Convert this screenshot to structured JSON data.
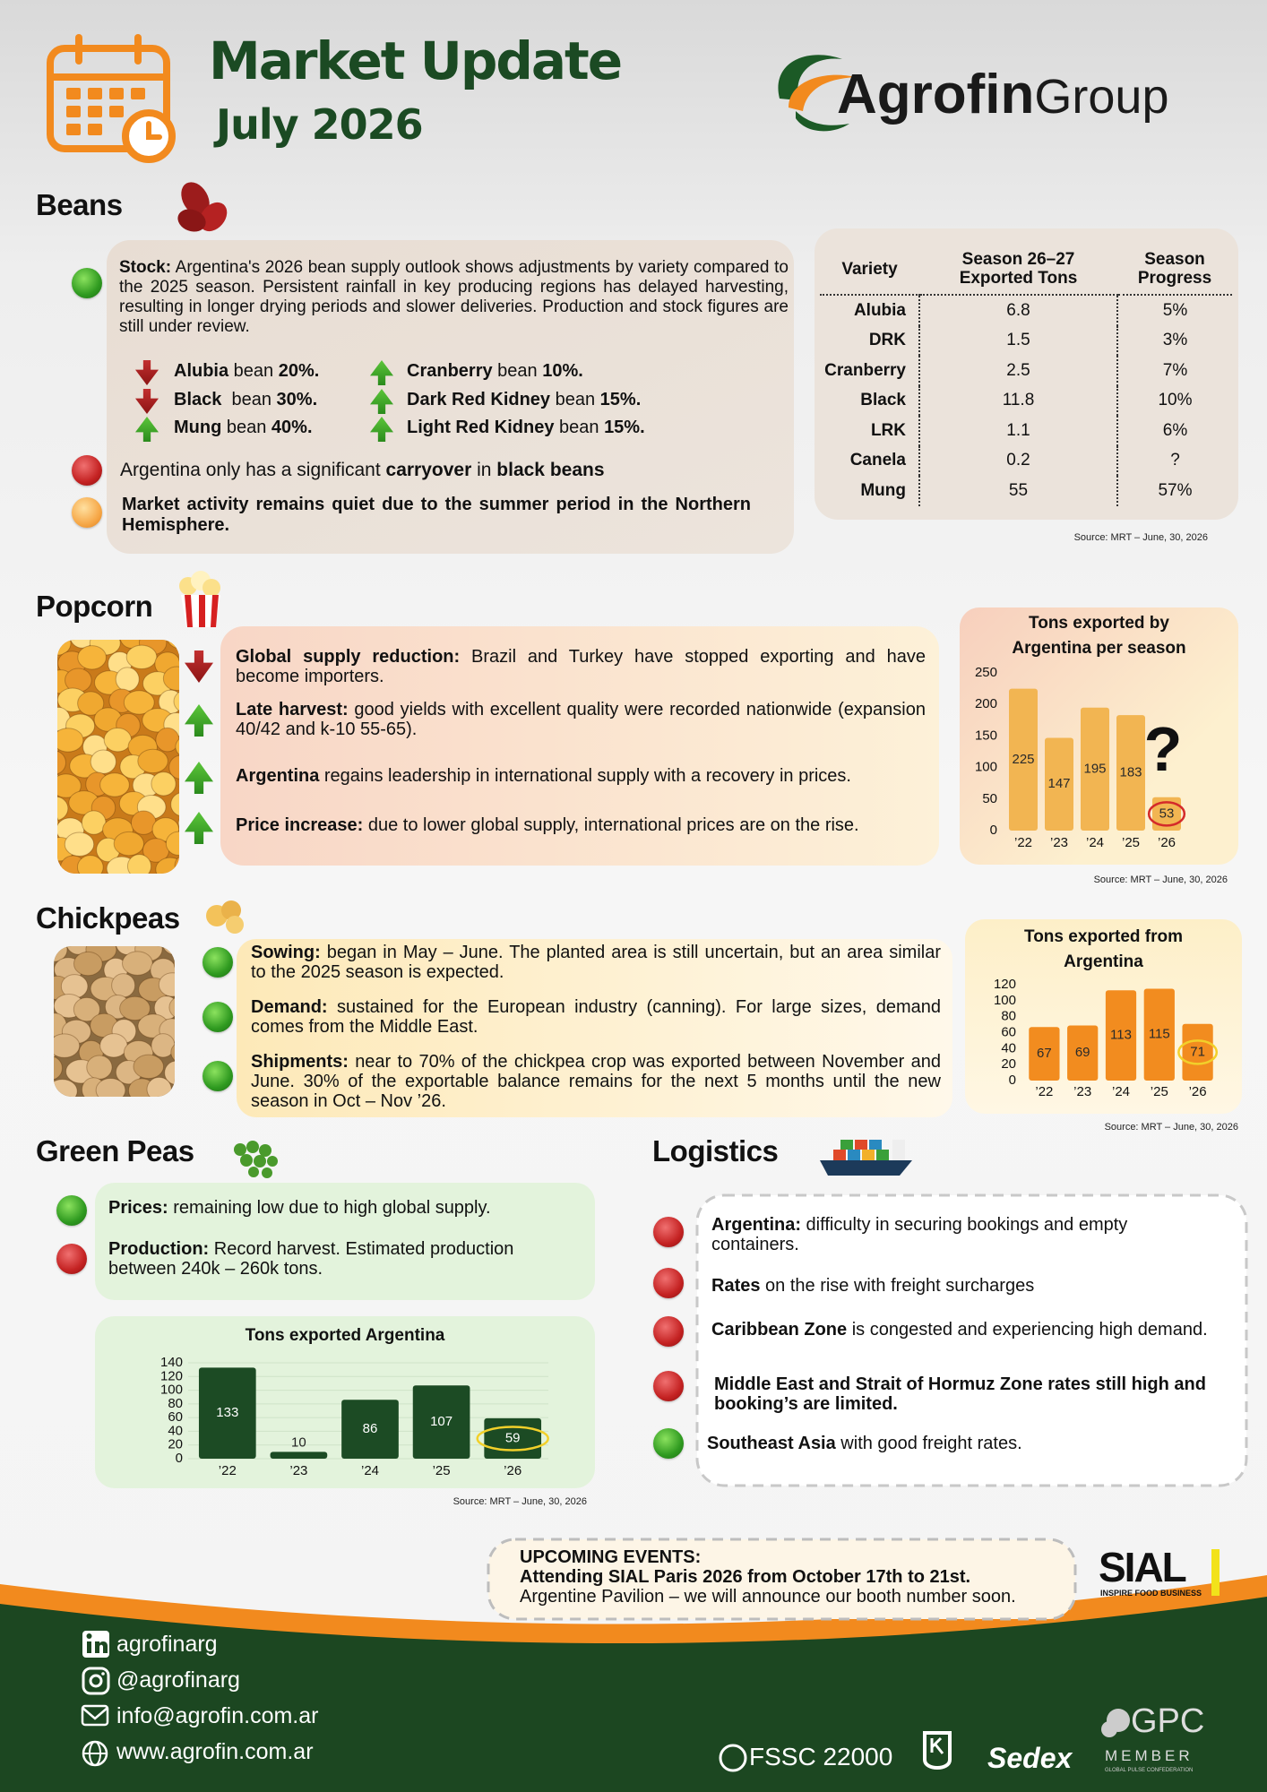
{
  "header": {
    "title": "Market Update",
    "subtitle": "July 2026",
    "logo": {
      "name": "Agrofin",
      "suffix": "Group"
    }
  },
  "beans": {
    "heading": "Beans",
    "stock": {
      "marker": "green",
      "parts": [
        {
          "text": "Stock:",
          "bold": true
        },
        {
          "text": " Argentina's 2026 bean supply outlook shows adjustments by variety compared to the 2025 season. Persistent rainfall in key producing regions has delayed harvesting, resulting in longer drying periods and slower deliveries. Production and stock figures are still under review."
        }
      ]
    },
    "changes": [
      {
        "trend": "down",
        "parts": [
          {
            "text": "Alubia",
            "bold": true
          },
          {
            "text": " bean "
          },
          {
            "text": "20%.",
            "bold": true
          }
        ]
      },
      {
        "trend": "down",
        "parts": [
          {
            "text": "Black",
            "bold": true
          },
          {
            "text": "  bean "
          },
          {
            "text": "30%.",
            "bold": true
          }
        ]
      },
      {
        "trend": "up",
        "parts": [
          {
            "text": "Mung",
            "bold": true
          },
          {
            "text": " bean "
          },
          {
            "text": "40%.",
            "bold": true
          }
        ]
      },
      {
        "trend": "up",
        "parts": [
          {
            "text": "Cranberry",
            "bold": true
          },
          {
            "text": " bean "
          },
          {
            "text": "10%.",
            "bold": true
          }
        ]
      },
      {
        "trend": "up",
        "parts": [
          {
            "text": "Dark Red Kidney",
            "bold": true
          },
          {
            "text": " bean "
          },
          {
            "text": "15%.",
            "bold": true
          }
        ]
      },
      {
        "trend": "up",
        "parts": [
          {
            "text": "Light Red Kidney",
            "bold": true
          },
          {
            "text": " bean "
          },
          {
            "text": "15%.",
            "bold": true
          }
        ]
      }
    ],
    "notes": [
      {
        "marker": "red",
        "parts": [
          {
            "text": "Argentina only has a significant "
          },
          {
            "text": "carryover",
            "bold": true
          },
          {
            "text": " in "
          },
          {
            "text": "black beans",
            "bold": true
          }
        ]
      },
      {
        "marker": "orange",
        "parts": [
          {
            "text": "Market activity remains quiet due to the summer period in the Northern Hemisphere.",
            "bold": true
          }
        ]
      }
    ],
    "table": {
      "columns": [
        "Variety",
        "Season 26–27 Exported Tons",
        "Season Progress"
      ],
      "rows": [
        [
          "Alubia",
          6.8,
          "5%"
        ],
        [
          "DRK",
          1.5,
          "3%"
        ],
        [
          "Cranberry",
          2.5,
          "7%"
        ],
        [
          "Black",
          11.8,
          "10%"
        ],
        [
          "LRK",
          1.1,
          "6%"
        ],
        [
          "Canela",
          0.2,
          "?"
        ],
        [
          "Mung",
          55,
          "57%"
        ]
      ]
    },
    "source": "Source: MRT – June, 30, 2026"
  },
  "popcorn": {
    "heading": "Popcorn",
    "items": [
      {
        "trend": "down",
        "parts": [
          {
            "text": "Global supply reduction:",
            "bold": true
          },
          {
            "text": " Brazil and Turkey have stopped exporting and have become importers."
          }
        ]
      },
      {
        "trend": "up",
        "parts": [
          {
            "text": "Late harvest:",
            "bold": true
          },
          {
            "text": " good yields with excellent quality were recorded nationwide (expansion 40/42 and k-10 55-65)."
          }
        ]
      },
      {
        "trend": "up",
        "parts": [
          {
            "text": "Argentina",
            "bold": true
          },
          {
            "text": " regains leadership in international supply with a recovery in prices."
          }
        ]
      },
      {
        "trend": "up",
        "parts": [
          {
            "text": "Price increase:",
            "bold": true
          },
          {
            "text": " due to lower global supply, international prices are on the rise."
          }
        ]
      }
    ],
    "chart": {
      "type": "bar",
      "title": "Tons exported by Argentina per season",
      "categories": [
        "’22",
        "’23",
        "’24",
        "’25",
        "’26"
      ],
      "values": [
        225,
        147,
        195,
        183,
        53
      ],
      "ylim": [
        0,
        250
      ],
      "yticks": [
        0,
        50,
        100,
        150,
        200,
        250
      ],
      "grid": false,
      "color": "#f2b552",
      "label_color": "#2a2a2a",
      "highlight_color": "#d42a2a",
      "annotation": "?"
    },
    "source": "Source: MRT – June, 30, 2026"
  },
  "chickpeas": {
    "heading": "Chickpeas",
    "items": [
      {
        "marker": "green",
        "parts": [
          {
            "text": "Sowing:",
            "bold": true
          },
          {
            "text": " began in May – June. The planted area is still uncertain, but an area similar to the 2025 season is expected."
          }
        ]
      },
      {
        "marker": "green",
        "parts": [
          {
            "text": "Demand:",
            "bold": true
          },
          {
            "text": " sustained for the European industry (canning). For large sizes, demand comes from the Middle East."
          }
        ]
      },
      {
        "marker": "green",
        "parts": [
          {
            "text": "Shipments:",
            "bold": true
          },
          {
            "text": "  near to 70% of the chickpea crop was exported between November and June. 30% of the exportable balance remains for the next 5 months until the new season in Oct – Nov ’26."
          }
        ]
      }
    ],
    "chart": {
      "type": "bar",
      "title": "Tons exported from Argentina",
      "categories": [
        "’22",
        "’23",
        "’24",
        "’25",
        "’26"
      ],
      "values": [
        67,
        69,
        113,
        115,
        71
      ],
      "ylim": [
        0,
        120
      ],
      "yticks": [
        0,
        20,
        40,
        60,
        80,
        100,
        120
      ],
      "grid": false,
      "color": "#f28c1f",
      "label_color": "#2a2a2a",
      "highlight_color": "#f2d02a"
    },
    "source": "Source: MRT – June, 30, 2026"
  },
  "green_peas": {
    "heading": "Green Peas",
    "items": [
      {
        "marker": "green",
        "parts": [
          {
            "text": "Prices:",
            "bold": true
          },
          {
            "text": " remaining low due to high global supply."
          }
        ]
      },
      {
        "marker": "red",
        "parts": [
          {
            "text": "Production:",
            "bold": true
          },
          {
            "text": " Record harvest. Estimated production between 240k – 260k tons."
          }
        ]
      }
    ],
    "chart": {
      "type": "bar",
      "title": "Tons exported Argentina",
      "categories": [
        "’22",
        "’23",
        "’24",
        "’25",
        "’26"
      ],
      "values": [
        133,
        10,
        86,
        107,
        59
      ],
      "ylim": [
        0,
        140
      ],
      "yticks": [
        0,
        20,
        40,
        60,
        80,
        100,
        120,
        140
      ],
      "grid": true,
      "color": "#1c4b24",
      "label_color": "#ffffff",
      "highlight_color": "#f2d02a"
    },
    "source": "Source: MRT – June, 30, 2026"
  },
  "logistics": {
    "heading": "Logistics",
    "items": [
      {
        "marker": "red",
        "parts": [
          {
            "text": "Argentina:",
            "bold": true
          },
          {
            "text": " difficulty in securing bookings and empty containers."
          }
        ]
      },
      {
        "marker": "red",
        "parts": [
          {
            "text": "Rates",
            "bold": true
          },
          {
            "text": " on the rise with freight surcharges"
          }
        ]
      },
      {
        "marker": "red",
        "parts": [
          {
            "text": "Caribbean Zone",
            "bold": true
          },
          {
            "text": " is congested and experiencing high demand."
          }
        ]
      },
      {
        "marker": "red",
        "parts": [
          {
            "text": "Middle East and Strait of Hormuz Zone rates still high and booking’s are limited.",
            "bold": true
          }
        ]
      },
      {
        "marker": "green",
        "parts": [
          {
            "text": "Southeast Asia",
            "bold": true
          },
          {
            "text": " with good freight rates."
          }
        ]
      }
    ]
  },
  "events": {
    "lines": [
      {
        "text": "UPCOMING EVENTS:",
        "bold": true
      },
      {
        "text": "Attending SIAL Paris 2026 from October 17th to 21st.",
        "bold": true
      },
      {
        "text": "Argentine Pavilion – we will announce our booth number soon."
      }
    ]
  },
  "sial": {
    "name": "SIAL",
    "tagline": "INSPIRE FOOD BUSINESS"
  },
  "footer": {
    "contacts": [
      "agrofinarg",
      "@agrofinarg",
      "info@agrofin.com.ar",
      "www.agrofin.com.ar"
    ],
    "certifications": {
      "fssc": "FSSC 22000",
      "sedex": "Sedex",
      "gpc": "GPC",
      "member": "MEMBER",
      "gpc_full": "GLOBAL PULSE CONFEDERATION"
    }
  }
}
